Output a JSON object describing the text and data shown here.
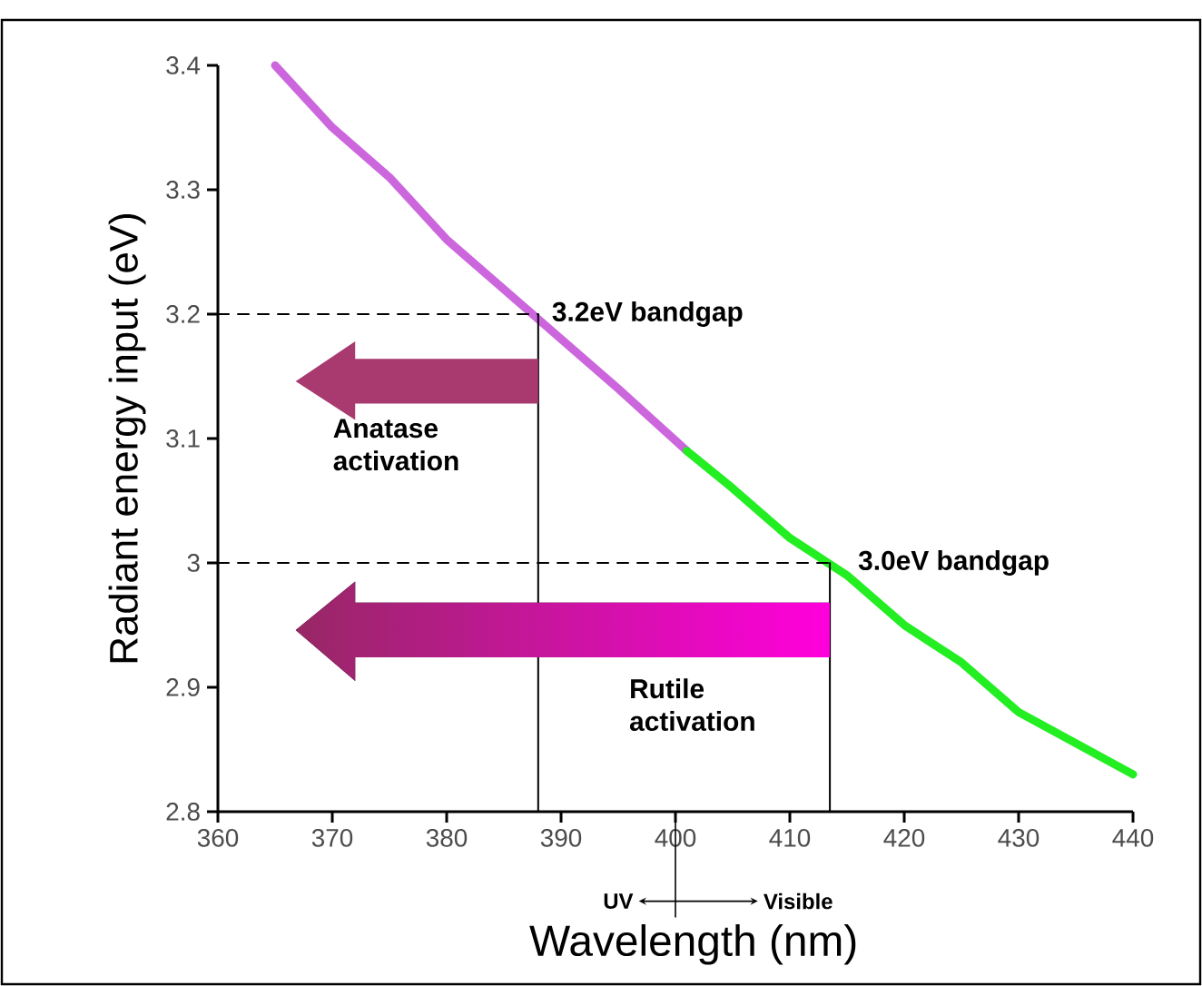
{
  "chart_data": {
    "type": "line",
    "xlabel": "Wavelength (nm)",
    "ylabel": "Radiant energy input (eV)",
    "xlim": [
      360,
      440
    ],
    "ylim": [
      2.8,
      3.4
    ],
    "xticks": [
      360,
      370,
      380,
      390,
      400,
      410,
      420,
      430,
      440
    ],
    "yticks": [
      2.8,
      2.9,
      3,
      3.1,
      3.2,
      3.3,
      3.4
    ],
    "series": [
      {
        "color": "#cc66dd",
        "x": [
          365,
          370,
          375,
          380,
          385,
          390,
          395,
          401
        ],
        "values": [
          3.4,
          3.35,
          3.31,
          3.26,
          3.22,
          3.18,
          3.14,
          3.09
        ]
      },
      {
        "color": "#22ee22",
        "x": [
          401,
          405,
          410,
          415,
          420,
          425,
          430,
          435,
          440
        ],
        "values": [
          3.09,
          3.06,
          3.02,
          2.99,
          2.95,
          2.92,
          2.88,
          2.855,
          2.83
        ]
      },
      {
        "color": "#000000",
        "line_style": "dashed",
        "x": [
          360,
          388
        ],
        "values": [
          3.2,
          3.2
        ]
      },
      {
        "color": "#000000",
        "x": [
          388,
          388
        ],
        "values": [
          2.8,
          3.2
        ]
      },
      {
        "color": "#000000",
        "line_style": "dashed",
        "x": [
          360,
          413.5
        ],
        "values": [
          3.0,
          3.0
        ]
      },
      {
        "color": "#000000",
        "x": [
          413.5,
          413.5
        ],
        "values": [
          2.8,
          3.0
        ]
      }
    ],
    "annotations": [
      {
        "text": "3.2eV bandgap",
        "x": 388,
        "y": 3.2
      },
      {
        "text": "3.0eV bandgap",
        "x": 413.5,
        "y": 3.0
      },
      "Anatase activation",
      "Rutile activation",
      "UV",
      "Visible"
    ]
  }
}
